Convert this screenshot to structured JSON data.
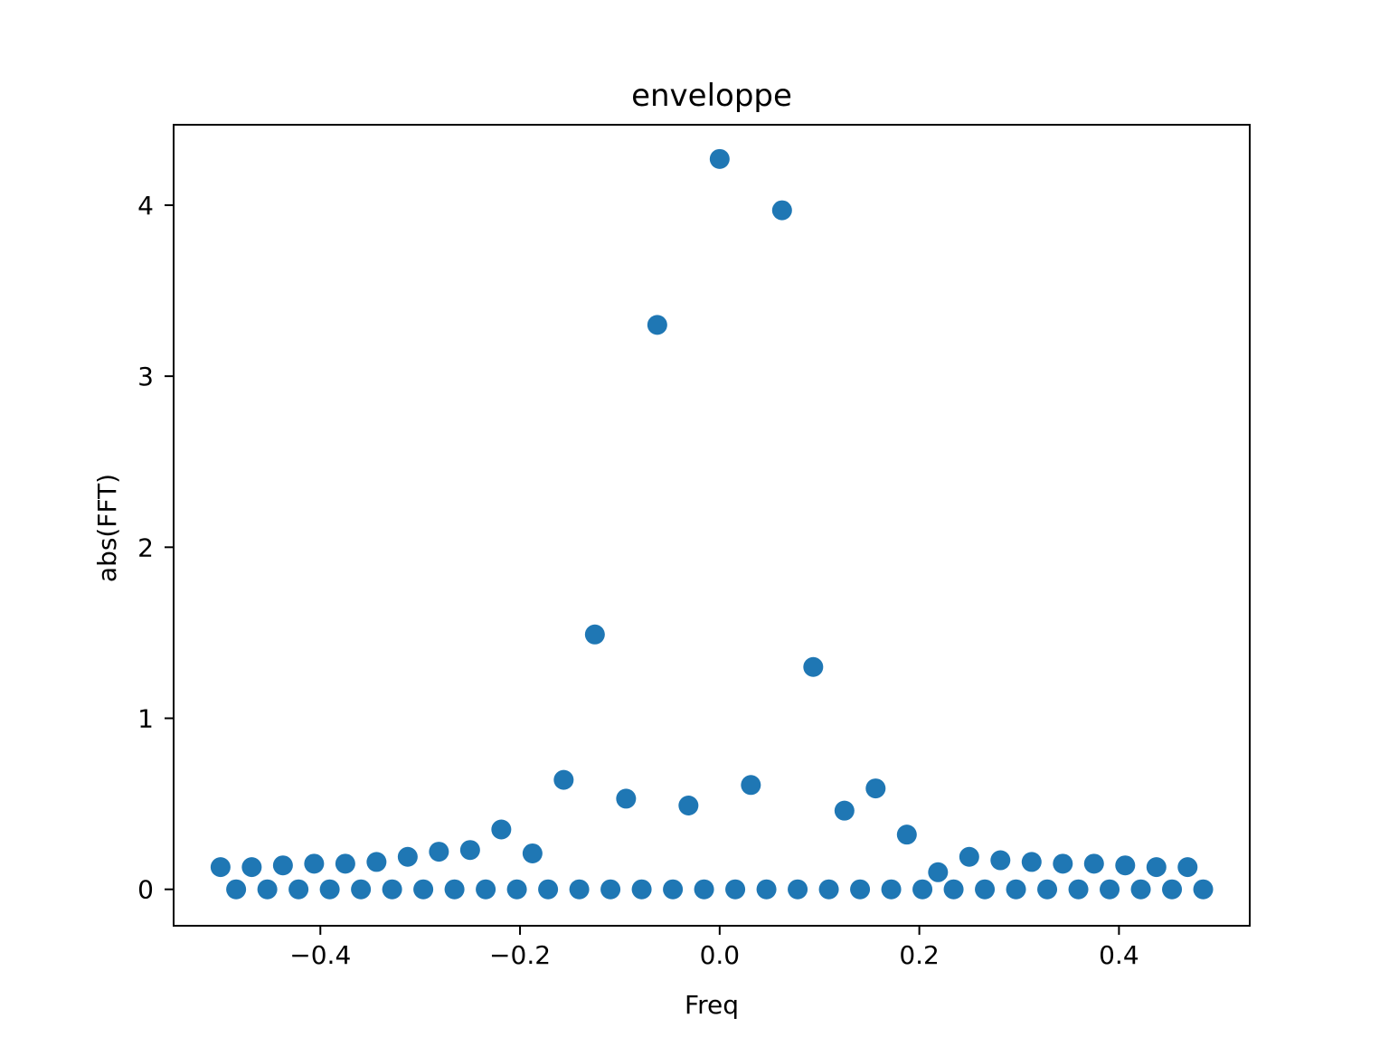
{
  "chart_data": {
    "type": "scatter",
    "title": "enveloppe",
    "xlabel": "Freq",
    "ylabel": "abs(FFT)",
    "xlim": [
      -0.547,
      0.531
    ],
    "ylim": [
      -0.213,
      4.47
    ],
    "xticks": [
      -0.4,
      -0.2,
      0.0,
      0.2,
      0.4
    ],
    "xtick_labels": [
      "−0.4",
      "−0.2",
      "0.0",
      "0.2",
      "0.4"
    ],
    "yticks": [
      0,
      1,
      2,
      3,
      4
    ],
    "ytick_labels": [
      "0",
      "1",
      "2",
      "3",
      "4"
    ],
    "grid": false,
    "marker_color": "#1f77b4",
    "x": [
      -0.5,
      -0.484375,
      -0.46875,
      -0.453125,
      -0.4375,
      -0.421875,
      -0.40625,
      -0.390625,
      -0.375,
      -0.359375,
      -0.34375,
      -0.328125,
      -0.3125,
      -0.296875,
      -0.28125,
      -0.265625,
      -0.25,
      -0.234375,
      -0.21875,
      -0.203125,
      -0.1875,
      -0.171875,
      -0.15625,
      -0.140625,
      -0.125,
      -0.109375,
      -0.09375,
      -0.078125,
      -0.0625,
      -0.046875,
      -0.03125,
      -0.015625,
      0.0,
      0.015625,
      0.03125,
      0.046875,
      0.0625,
      0.078125,
      0.09375,
      0.109375,
      0.125,
      0.140625,
      0.15625,
      0.171875,
      0.1875,
      0.203125,
      0.21875,
      0.234375,
      0.25,
      0.265625,
      0.28125,
      0.296875,
      0.3125,
      0.328125,
      0.34375,
      0.359375,
      0.375,
      0.390625,
      0.40625,
      0.421875,
      0.4375,
      0.453125,
      0.46875,
      0.484375
    ],
    "y": [
      0.13,
      0.0,
      0.13,
      0.0,
      0.14,
      0.0,
      0.15,
      0.0,
      0.15,
      0.0,
      0.16,
      0.0,
      0.19,
      0.0,
      0.22,
      0.0,
      0.23,
      0.0,
      0.35,
      0.0,
      0.21,
      0.0,
      0.64,
      0.0,
      1.49,
      0.0,
      0.53,
      0.0,
      3.3,
      0.0,
      0.49,
      0.0,
      4.27,
      0.0,
      0.61,
      0.0,
      3.97,
      0.0,
      1.3,
      0.0,
      0.46,
      0.0,
      0.59,
      0.0,
      0.32,
      0.0,
      0.1,
      0.0,
      0.19,
      0.0,
      0.17,
      0.0,
      0.16,
      0.0,
      0.15,
      0.0,
      0.15,
      0.0,
      0.14,
      0.0,
      0.13,
      0.0,
      0.13,
      0.0
    ]
  }
}
